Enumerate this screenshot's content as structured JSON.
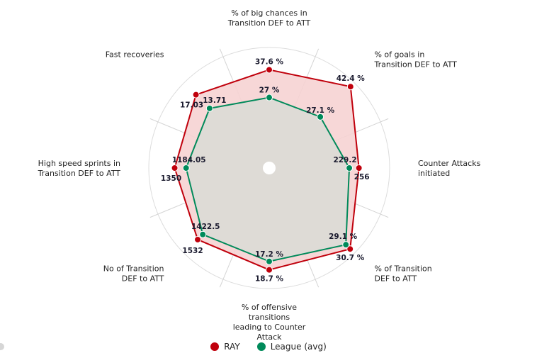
{
  "chart_data": {
    "type": "radar",
    "categories": [
      "% of big chances in\nTransition DEF to ATT",
      "% of goals in\nTransition DEF to ATT",
      "Counter Attacks\ninitiated",
      "% of Transition\nDEF to ATT",
      "% of offensive\ntransitions\nleading to Counter\nAttack",
      "No of Transition\nDEF to ATT",
      "High speed sprints in\nTransition DEF to ATT",
      "Fast recoveries"
    ],
    "series": [
      {
        "name": "RAY",
        "color": "#c0000c",
        "fill": "#f6d3d3",
        "values": [
          37.6,
          42.4,
          256,
          30.7,
          18.7,
          1532,
          1350,
          17.03
        ],
        "labels": [
          "37.6 %",
          "42.4 %",
          "256",
          "30.7 %",
          "18.7 %",
          "1532",
          "1350",
          "17.03"
        ],
        "normalized": [
          0.815,
          0.955,
          0.745,
          0.95,
          0.845,
          0.84,
          0.785,
          0.86
        ]
      },
      {
        "name": "League (avg)",
        "color": "#008a5a",
        "fill": "#d9dcd6",
        "values": [
          27,
          27.1,
          229.2,
          29.1,
          17.2,
          1422.5,
          1184.05,
          13.71
        ],
        "labels": [
          "27 %",
          "27.1 %",
          "229.2",
          "29.1 %",
          "17.2 %",
          "1422.5",
          "1184.05",
          "13.71"
        ],
        "normalized": [
          0.585,
          0.6,
          0.665,
          0.9,
          0.775,
          0.78,
          0.69,
          0.7
        ]
      }
    ],
    "grid": true,
    "legend_position": "bottom"
  }
}
